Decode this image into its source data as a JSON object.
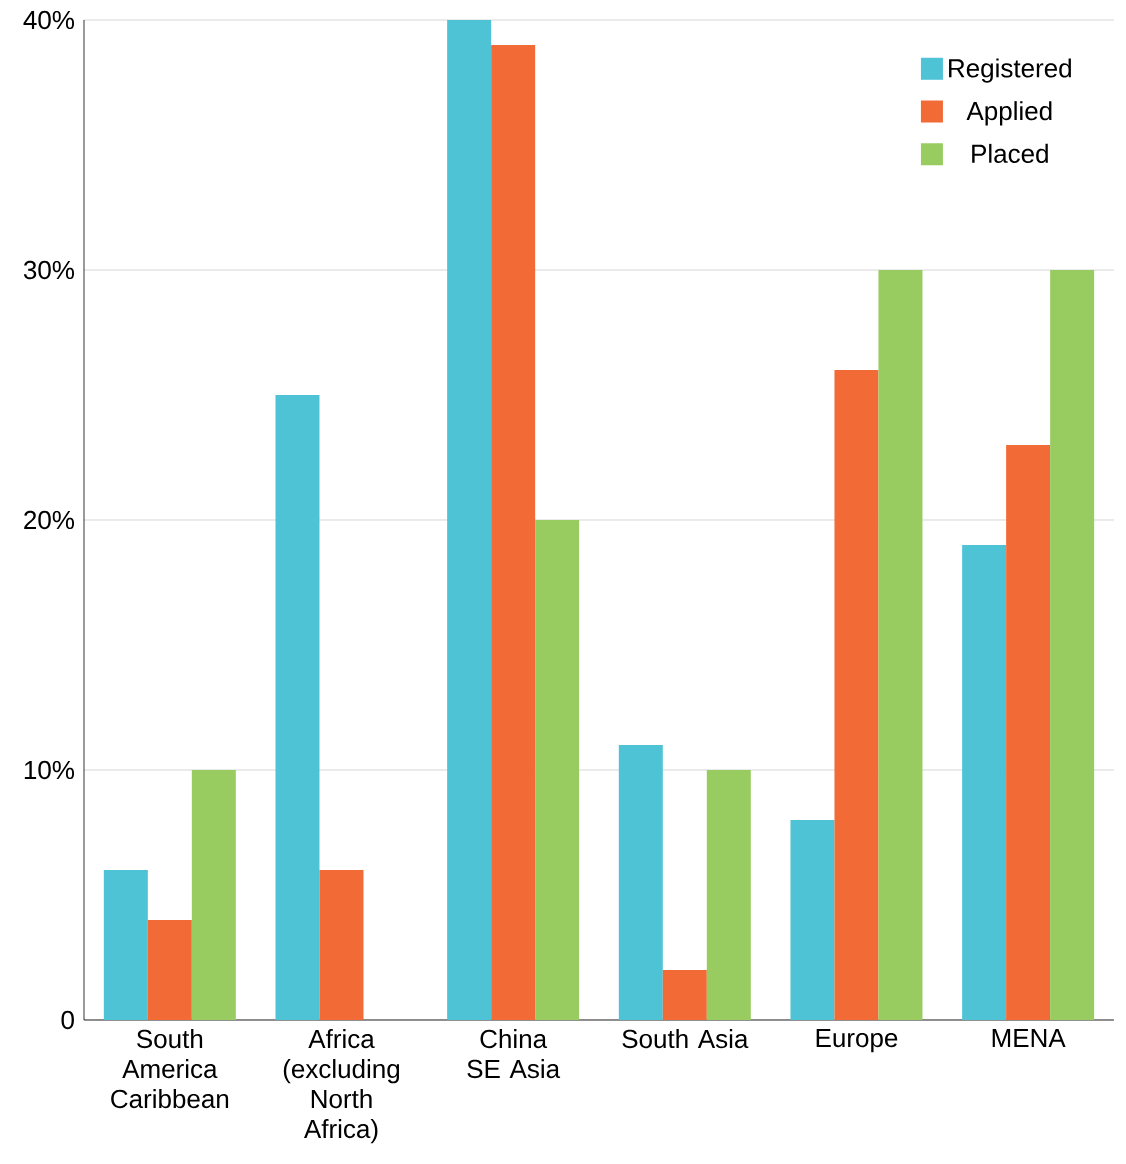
{
  "chart_data": {
    "type": "bar",
    "categories": [
      "South America Caribbean",
      "Africa (excluding North Africa)",
      "China SE Asia",
      "South Asia",
      "Europe",
      "MENA"
    ],
    "series": [
      {
        "name": "Registered",
        "color": "#4fc3d6",
        "values": [
          6,
          25,
          40,
          11,
          8,
          19
        ]
      },
      {
        "name": "Applied",
        "color": "#f26a35",
        "values": [
          4,
          6,
          39,
          2,
          26,
          23
        ]
      },
      {
        "name": "Placed",
        "color": "#98cc60",
        "values": [
          10,
          null,
          20,
          10,
          30,
          30
        ]
      }
    ],
    "ylim": [
      0,
      40
    ],
    "yticks": [
      0,
      {
        "value": 10,
        "label": "10%"
      },
      {
        "value": 20,
        "label": "20%"
      },
      {
        "value": 30,
        "label": "30%"
      },
      {
        "value": 40,
        "label": "40%"
      }
    ],
    "grid": "y",
    "legend": "top right"
  }
}
